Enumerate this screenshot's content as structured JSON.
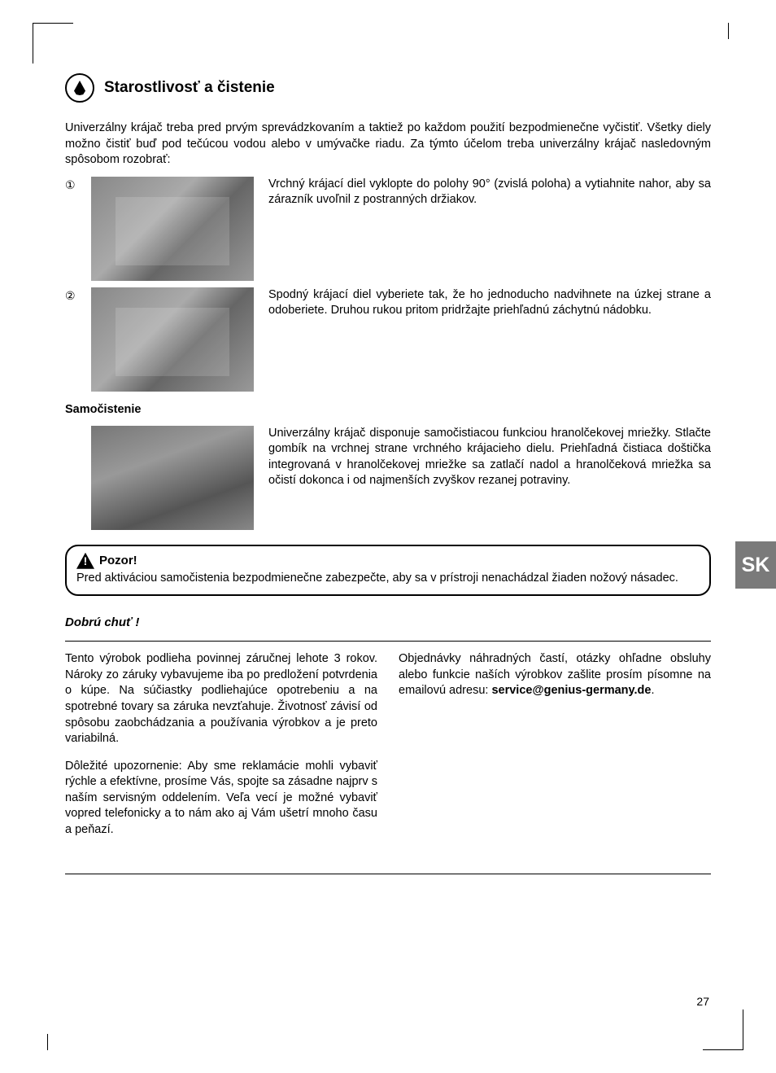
{
  "heading": "Starostlivosť a čistenie",
  "intro": "Univerzálny krájač treba pred prvým sprevádzkovaním a taktiež po každom použití bezpodmienečne vyčistiť. Všetky diely možno čistiť buď pod tečúcou vodou alebo v umývačke riadu. Za týmto účelom treba univerzálny krájač nasledovným spôsobom rozobrať:",
  "steps": [
    {
      "num": "①",
      "text": "Vrchný krájací diel vyklopte do polohy 90° (zvislá poloha) a vytiahnite nahor, aby sa zárazník uvoľnil z postranných držiakov."
    },
    {
      "num": "②",
      "text": "Spodný krájací diel vyberiete tak, že ho jednoducho nadvihnete na úzkej strane a odoberiete. Druhou rukou pritom pridržajte priehľadnú záchytnú nádobku."
    }
  ],
  "selfclean_heading": "Samočistenie",
  "selfclean_text": "Univerzálny krájač disponuje samočistiacou funkciou hranolčekovej mriežky. Stlačte gombík na vrchnej strane vrchného krájacieho dielu. Priehľadná čistiaca doštička integrovaná v hranolčekovej mriežke sa zatlačí nadol a hranolčeková mriežka sa očistí dokonca i od najmenších zvyškov rezanej potraviny.",
  "warning_title": "Pozor!",
  "warning_text": "Pred aktiváciou samočistenia bezpodmienečne zabezpečte, aby sa v prístroji nenachádzal žiaden nožový násadec.",
  "bon_appetit": "Dobrú chuť !",
  "col1": {
    "p1": "Tento výrobok podlieha povinnej záručnej lehote 3 rokov. Nároky zo záruky vybavujeme iba po predložení potvrdenia o kúpe. Na súčiastky podliehajúce opotrebeniu a na spotrebné tovary sa záruka nevzťahuje. Životnosť závisí od spôsobu zaobchádzania a používania výrobkov a je preto variabilná.",
    "p2": "Dôležité upozornenie: Aby sme reklamácie mohli vybaviť rýchle a efektívne, prosíme Vás, spojte sa zásadne najprv s naším servisným oddelením. Veľa vecí je možné vybaviť vopred telefonicky a to nám ako aj Vám ušetrí mnoho času a peňazí."
  },
  "col2_prefix": "Objednávky náhradných častí, otázky ohľadne obsluhy alebo funkcie naších výrobkov zašlite prosím písomne na emailovú adresu: ",
  "email": "service@genius-germany.de",
  "page_num": "27",
  "lang_tab": "SK"
}
